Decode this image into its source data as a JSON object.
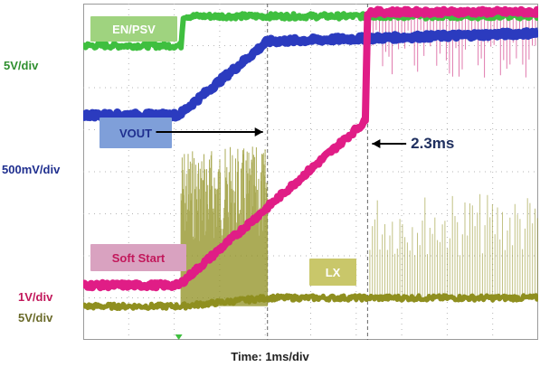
{
  "chart_data": {
    "type": "line",
    "title": "",
    "xlabel": "Time: 1ms/div",
    "ylabel": "",
    "xlim": [
      0,
      10
    ],
    "x_unit": "ms",
    "grid": true,
    "channel_scales": [
      {
        "text": "5V/div",
        "color": "#2f8f2f"
      },
      {
        "text": "500mV/div",
        "color": "#1f2f8f"
      },
      {
        "text": "1V/div",
        "color": "#c2185b"
      },
      {
        "text": "5V/div",
        "color": "#6b6b2a"
      }
    ],
    "series": [
      {
        "name": "EN/PSV",
        "color": "#3fbf3f",
        "label_color": "#9fd37f",
        "x": [
          0,
          2.15,
          2.2,
          10
        ],
        "y": [
          7.0,
          7.0,
          7.7,
          7.7
        ]
      },
      {
        "name": "VOUT",
        "color": "#2b3bbf",
        "label_color": "#7f9fd9",
        "x": [
          0,
          2.1,
          4.05,
          10
        ],
        "y": [
          5.35,
          5.35,
          7.1,
          7.3
        ]
      },
      {
        "name": "Soft Start",
        "color": "#e01d86",
        "label_color": "#d9a2c0",
        "x": [
          0,
          2.1,
          6.2,
          6.25,
          10
        ],
        "y": [
          1.3,
          1.3,
          5.2,
          7.8,
          7.8
        ]
      },
      {
        "name": "LX",
        "color": "#8f8f1f",
        "label_color": "#c9c76a",
        "x": [
          0,
          2.15,
          4.05,
          6.25,
          10
        ],
        "y": [
          0.8,
          0.8,
          1.0,
          1.0,
          1.0
        ]
      }
    ],
    "annotations": [
      {
        "text": "2.3ms",
        "color": "#1f2f5f"
      }
    ]
  }
}
